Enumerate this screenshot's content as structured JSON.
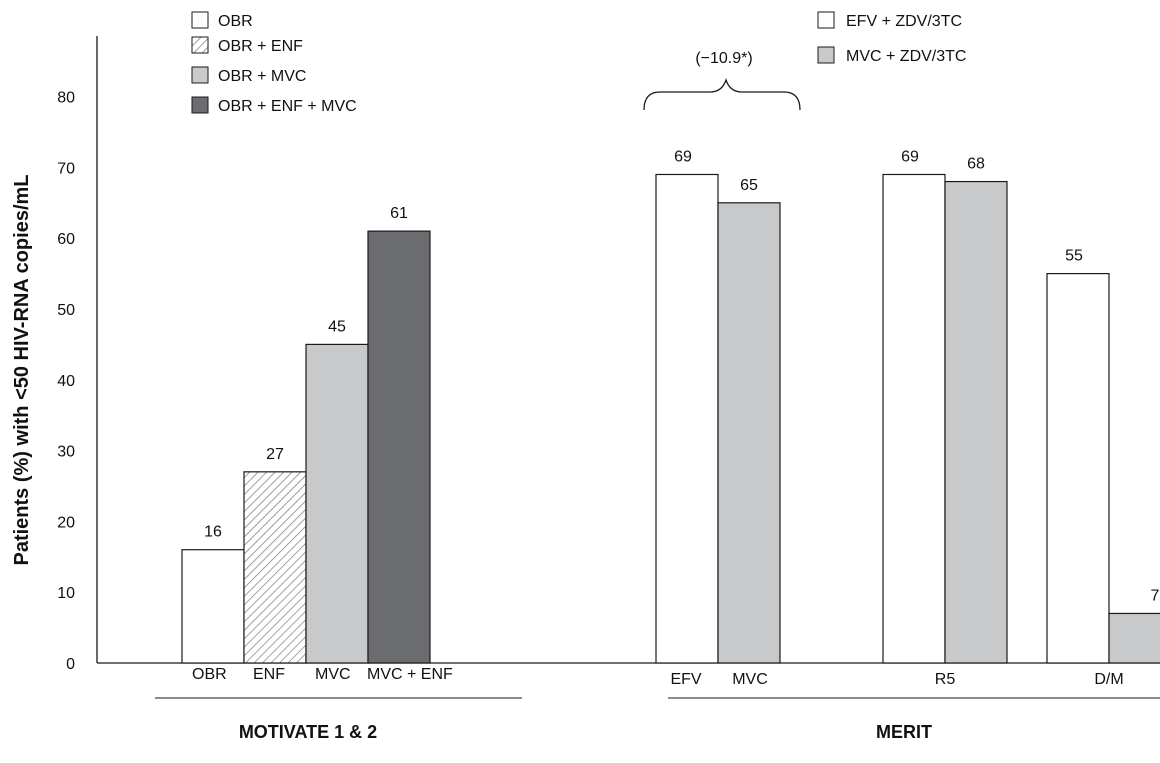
{
  "chart_data": {
    "type": "bar",
    "ylabel": "Patients (%) with <50 HIV-RNA copies/mL",
    "ylim": [
      0,
      85
    ],
    "yticks": [
      0,
      10,
      20,
      30,
      40,
      50,
      60,
      70,
      80
    ],
    "grid": false,
    "groups": [
      {
        "name": "MOTIVATE 1 & 2",
        "legend": [
          {
            "label": "OBR",
            "fill": "#ffffff"
          },
          {
            "label": "OBR + ENF",
            "fill": "hatch"
          },
          {
            "label": "OBR + MVC",
            "fill": "#c8c9cb"
          },
          {
            "label": "OBR + ENF + MVC",
            "fill": "#6b6c70"
          }
        ],
        "bars": [
          {
            "category": "OBR",
            "value": 16,
            "label": "16",
            "fill": "#ffffff"
          },
          {
            "category": "ENF",
            "value": 27,
            "label": "27",
            "fill": "hatch"
          },
          {
            "category": "MVC",
            "value": 45,
            "label": "45",
            "fill": "#c8c9cb"
          },
          {
            "category": "MVC + ENF",
            "value": 61,
            "label": "61",
            "fill": "#6b6c70"
          }
        ]
      },
      {
        "name": "MERIT",
        "legend": [
          {
            "label": "EFV + ZDV/3TC",
            "fill": "#ffffff"
          },
          {
            "label": "MVC + ZDV/3TC",
            "fill": "#c8c9cb"
          }
        ],
        "annotation": "(−10.9*)",
        "subgroups": [
          {
            "category": "EFV  MVC",
            "label_left": "EFV",
            "label_right": "MVC",
            "values": [
              69,
              65
            ],
            "labels": [
              "69",
              "65"
            ]
          },
          {
            "category": "R5",
            "values": [
              69,
              68
            ],
            "labels": [
              "69",
              "68"
            ]
          },
          {
            "category": "D/M",
            "values": [
              55,
              7
            ],
            "labels": [
              "55",
              "7"
            ]
          }
        ]
      }
    ]
  },
  "colors": {
    "white": "#ffffff",
    "light_gray": "#c8c9cb",
    "dark_gray": "#6b6c70",
    "stroke": "#1a1a1a"
  }
}
